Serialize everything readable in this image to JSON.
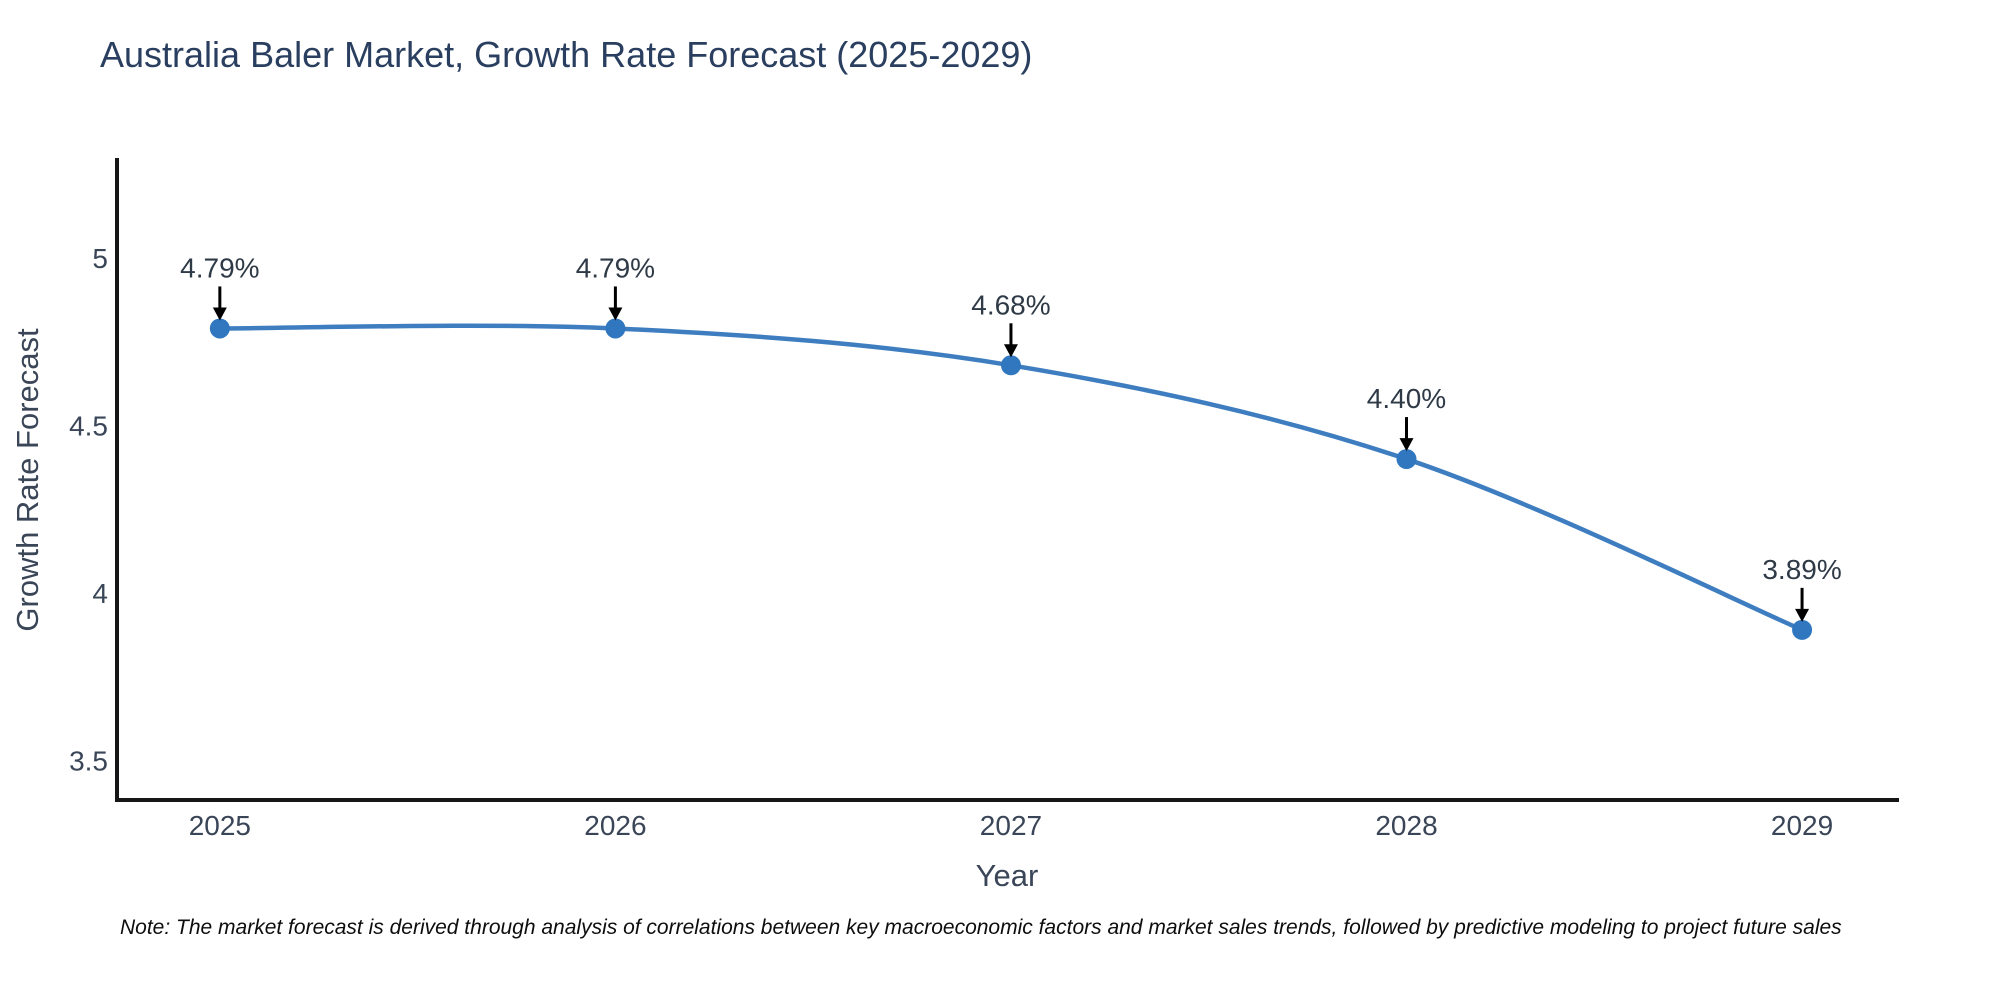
{
  "header": {
    "title": "Australia Baler Market, Growth Rate Forecast (2025-2029)"
  },
  "chart_data": {
    "type": "line",
    "title": "Australia Baler Market, Growth Rate Forecast (2025-2029)",
    "x": [
      2025,
      2026,
      2027,
      2028,
      2029
    ],
    "values": [
      4.79,
      4.79,
      4.68,
      4.4,
      3.89
    ],
    "point_labels": [
      "4.79%",
      "4.79%",
      "4.68%",
      "4.40%",
      "3.89%"
    ],
    "xlabel": "Year",
    "ylabel": "Growth Rate Forecast",
    "xticks": [
      2025,
      2026,
      2027,
      2028,
      2029
    ],
    "xtick_labels": [
      "2025",
      "2026",
      "2027",
      "2028",
      "2029"
    ],
    "yticks": [
      3.5,
      4,
      4.5,
      5
    ],
    "ytick_labels": [
      "3.5",
      "4",
      "4.5",
      "5"
    ],
    "xlim": [
      2024.74,
      2029.24
    ],
    "ylim": [
      3.382,
      5.293
    ],
    "line_shape": "spline",
    "grid": false,
    "legend": "none",
    "colors": {
      "line": "#3e7dbf",
      "marker": "#3077c0",
      "axis": "#161616",
      "tick_text": "#3a4657",
      "annotation_text": "#2f3a47",
      "arrow": "#000000"
    }
  },
  "footer": {
    "note": "Note: The market forecast is derived through analysis of correlations between key macroeconomic factors and market sales trends, followed by predictive modeling to project future sales"
  }
}
